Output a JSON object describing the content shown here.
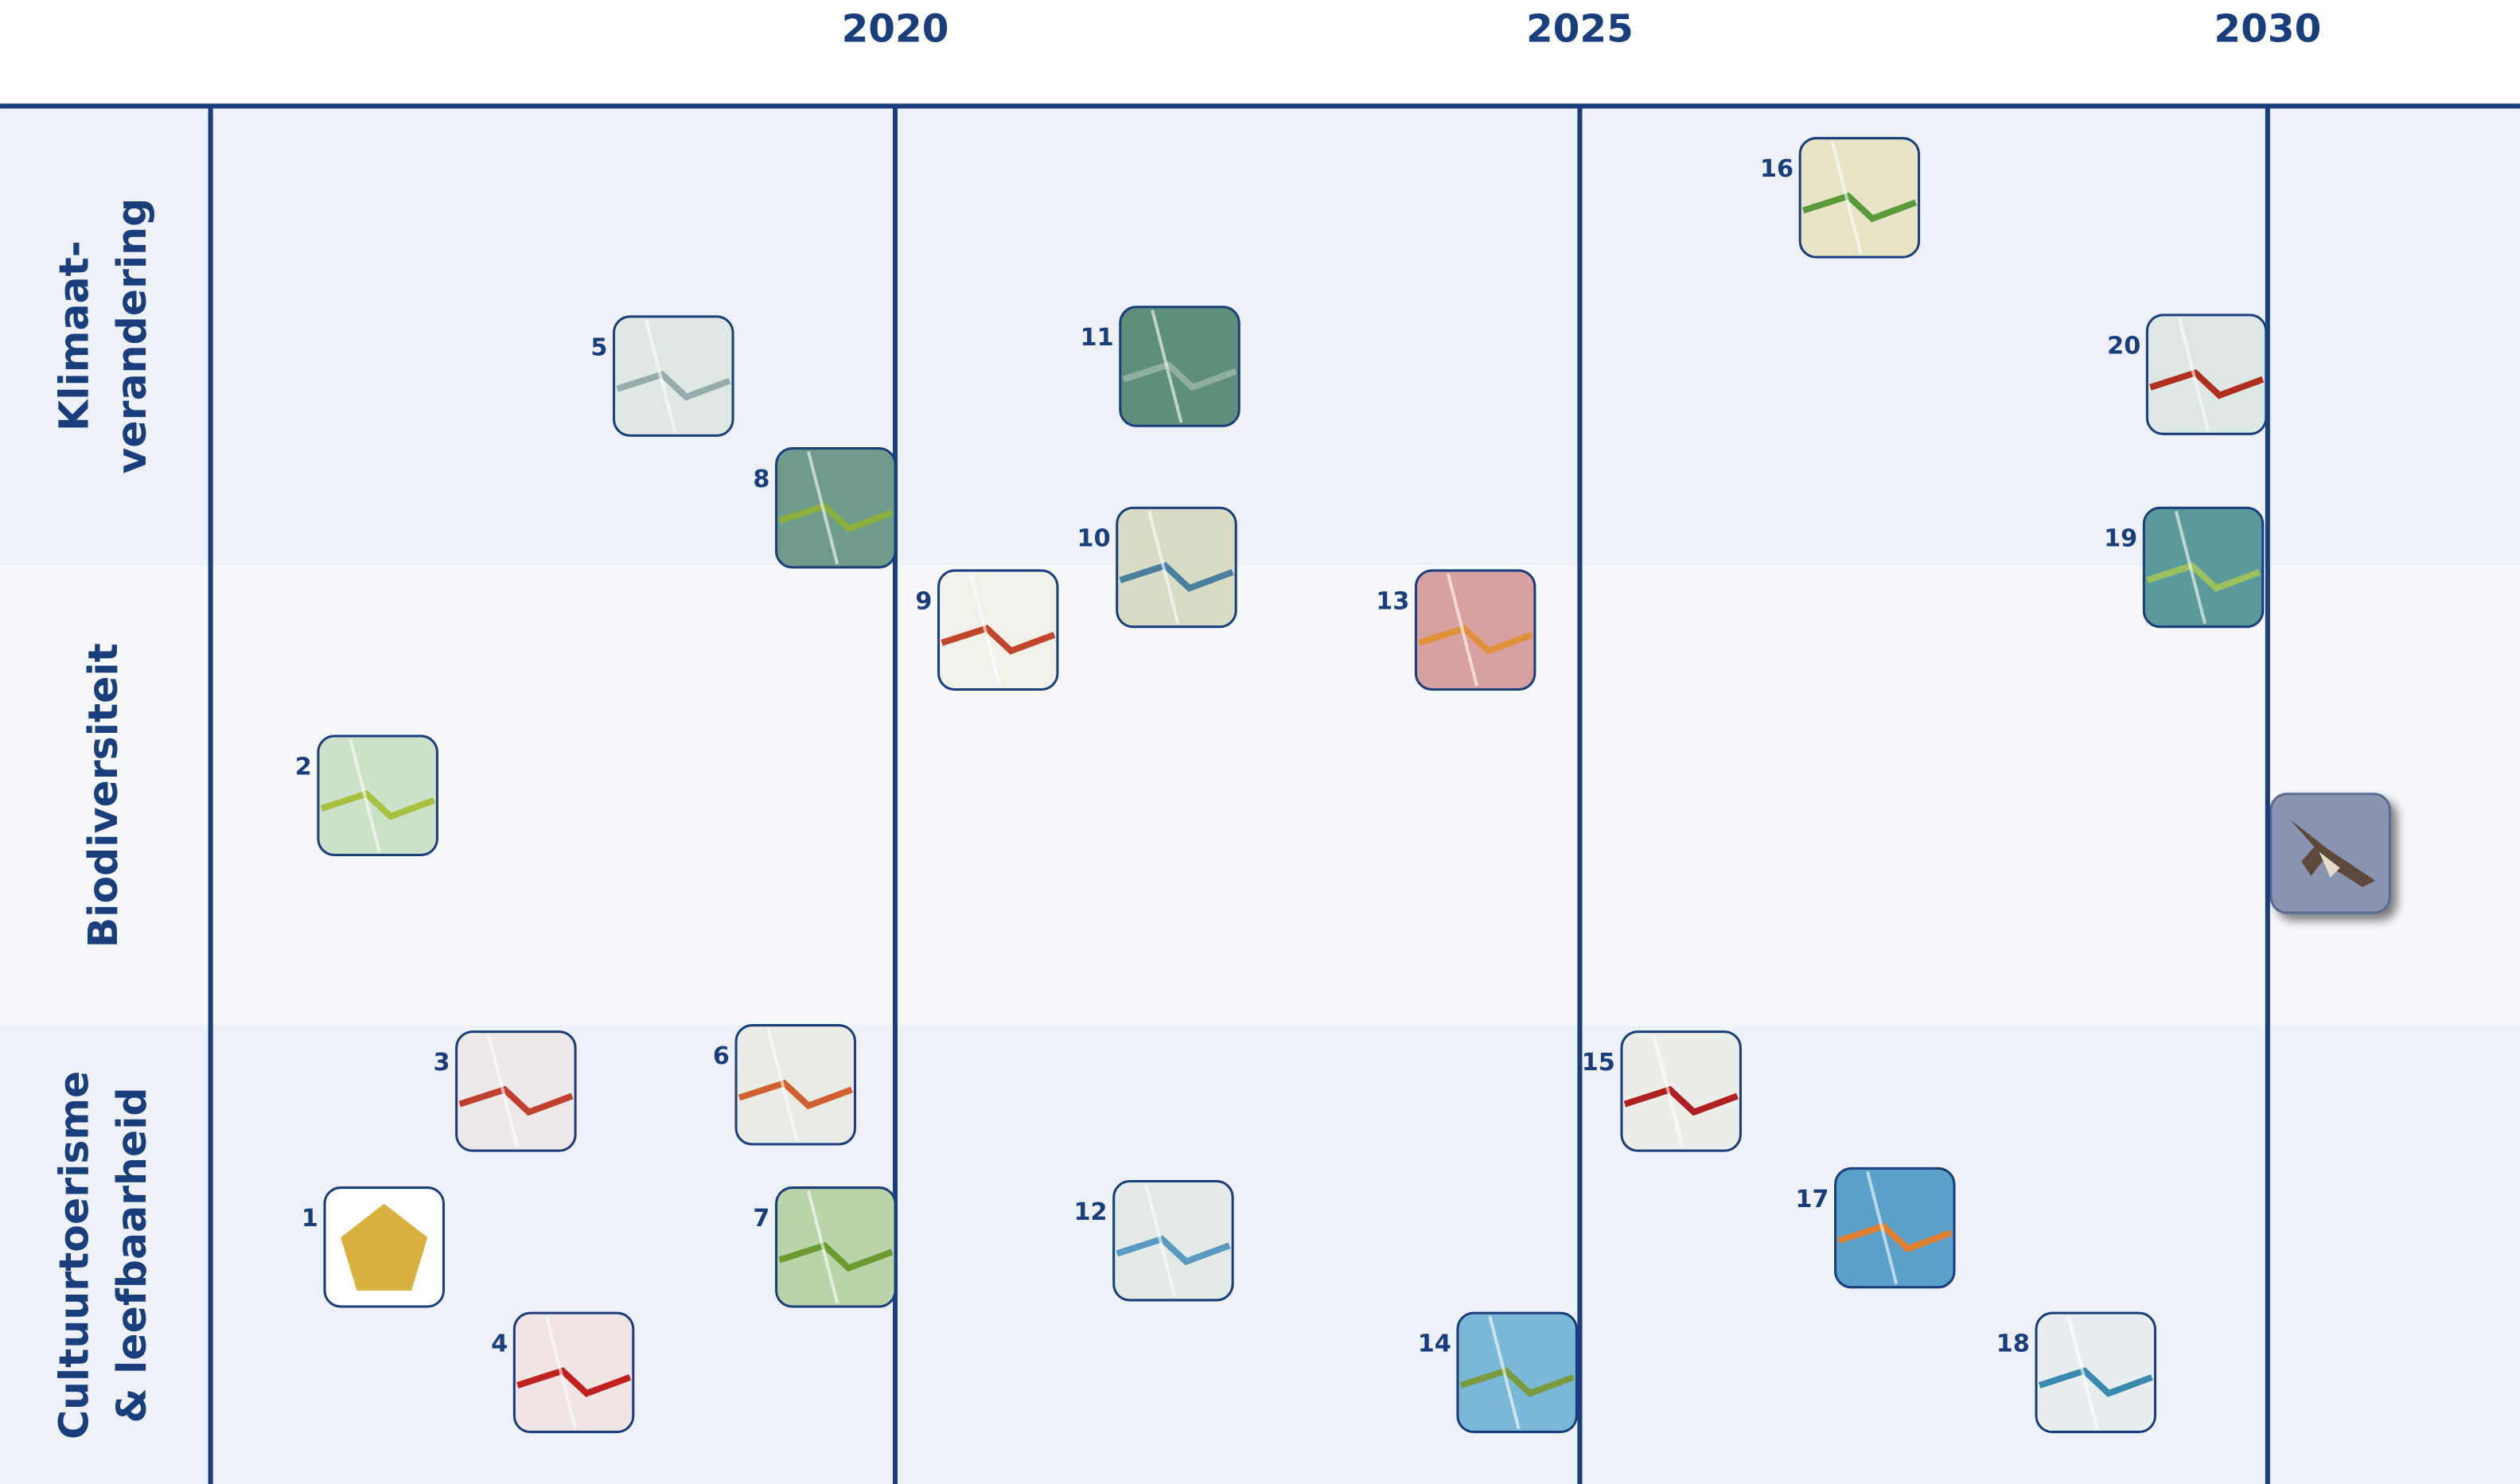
{
  "years": [
    "2020",
    "2025",
    "2030"
  ],
  "rows": [
    {
      "lines": [
        "Klimaat-",
        "verandering"
      ]
    },
    {
      "lines": [
        "Biodiversiteit"
      ]
    },
    {
      "lines": [
        "Cultuurtoerisme",
        "& leefbaarheid"
      ]
    }
  ],
  "items": [
    "5",
    "8",
    "11",
    "10",
    "9",
    "13",
    "16",
    "20",
    "19",
    "2",
    "3",
    "6",
    "1",
    "7",
    "4",
    "12",
    "14",
    "15",
    "17",
    "18"
  ]
}
